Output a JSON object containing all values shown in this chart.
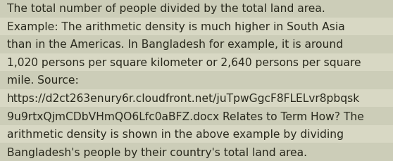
{
  "lines": [
    "The total number of people divided by the total land area.",
    "Example: The arithmetic density is much higher in South Asia",
    "than in the Americas. In Bangladesh for example, it is around",
    "1,020 persons per square kilometer or 2,640 persons per square",
    "mile. Source:",
    "https://d2ct263enury6r.cloudfront.net/juTpwGgcF8FLELvr8pbqsk",
    "9u9rtxQjmCDbVHmQO6Lfc0aBFZ.docx Relates to Term How? The",
    "arithmetic density is shown in the above example by dividing",
    "Bangladesh's people by their country's total land area."
  ],
  "background_color": "#d4d4be",
  "stripe_colors": [
    "#cccdb8",
    "#d8d8c4"
  ],
  "text_color": "#2a2a1e",
  "font_size": 11.2,
  "fig_width": 5.58,
  "fig_height": 2.3,
  "dpi": 100
}
